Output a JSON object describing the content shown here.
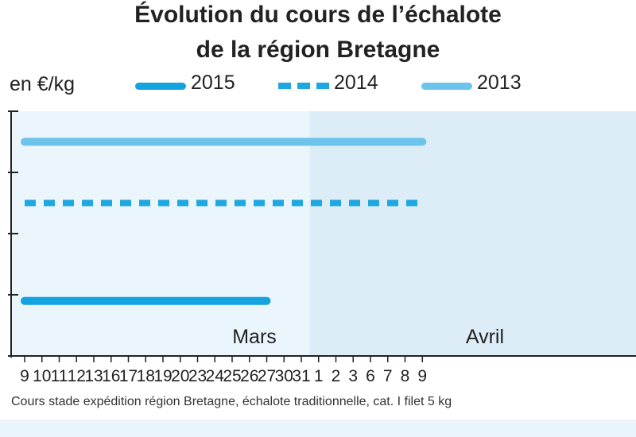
{
  "chart_data": {
    "type": "line",
    "title_line1": "Évolution du cours de l’échalote",
    "title_line2": "de la région Bretagne",
    "ylabel": "en €/kg",
    "categories": [
      "9",
      "10",
      "11",
      "12",
      "13",
      "16",
      "17",
      "18",
      "19",
      "20",
      "23",
      "24",
      "25",
      "26",
      "27",
      "30",
      "31",
      "1",
      "2",
      "3",
      "6",
      "7",
      "8",
      "9"
    ],
    "months": [
      {
        "label": "Mars",
        "start_index": 0,
        "end_index": 16
      },
      {
        "label": "Avril",
        "start_index": 17,
        "end_index": 23
      }
    ],
    "series": [
      {
        "name": "2015",
        "style": "solid",
        "color": "#13a3df",
        "values": [
          0.9,
          0.9,
          0.9,
          0.9,
          0.9,
          0.9,
          0.9,
          0.9,
          0.9,
          0.9,
          0.9,
          0.9,
          0.9,
          0.9,
          0.9,
          null,
          null,
          null,
          null,
          null,
          null,
          null,
          null,
          null
        ]
      },
      {
        "name": "2014",
        "style": "dashed",
        "color": "#1fa8e0",
        "values": [
          2.5,
          2.5,
          2.5,
          2.5,
          2.5,
          2.5,
          2.5,
          2.5,
          2.5,
          2.5,
          2.5,
          2.5,
          2.5,
          2.5,
          2.5,
          2.5,
          2.5,
          2.5,
          2.5,
          2.5,
          2.5,
          2.5,
          2.5,
          2.5
        ]
      },
      {
        "name": "2013",
        "style": "solid",
        "color": "#6cc4ec",
        "values": [
          3.5,
          3.5,
          3.5,
          3.5,
          3.5,
          3.5,
          3.5,
          3.5,
          3.5,
          3.5,
          3.5,
          3.5,
          3.5,
          3.5,
          3.5,
          3.5,
          3.5,
          3.5,
          3.5,
          3.5,
          3.5,
          3.5,
          3.5,
          3.5
        ]
      }
    ],
    "ylim": [
      0,
      4
    ],
    "grid": false,
    "legend_placement": "top",
    "footnote": "Cours stade expédition région Bretagne, échalote traditionnelle, cat. I filet 5 kg",
    "colors": {
      "plot_bg": "#eaf5fc",
      "april_bg": "#dcedf8",
      "axis": "#222222"
    }
  }
}
